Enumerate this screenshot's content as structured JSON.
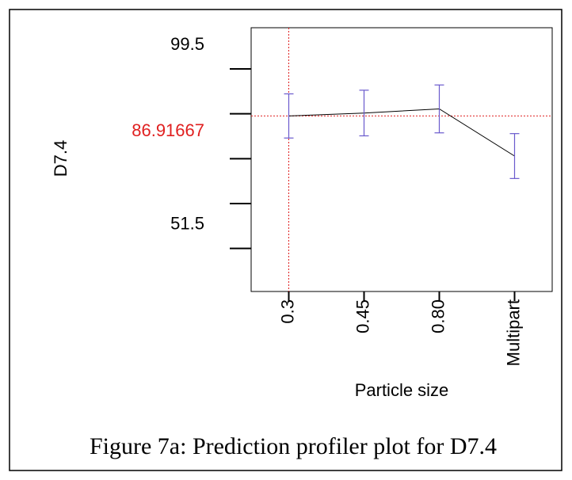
{
  "chart_data": {
    "type": "line",
    "y_label": "D7.4",
    "x_label": "Particle size",
    "caption": "Figure 7a: Prediction profiler plot for D7.4",
    "categories": [
      "0.3",
      "0.45",
      "0.80",
      "Multipart"
    ],
    "series": [
      {
        "color": "#000000",
        "error_color": "#6a5acd",
        "values": [
          86.92,
          87.7,
          88.8,
          76.2
        ],
        "error": [
          5.9,
          6.1,
          6.4,
          6.0
        ]
      }
    ],
    "ylim": [
      40,
      110.5
    ],
    "yticks": [
      99.5,
      51.5
    ],
    "yminor_ticks": [
      87.5,
      75.5,
      63.5
    ],
    "current_value": 86.91667,
    "current_category": "0.3",
    "reference_color": "#e02020"
  }
}
